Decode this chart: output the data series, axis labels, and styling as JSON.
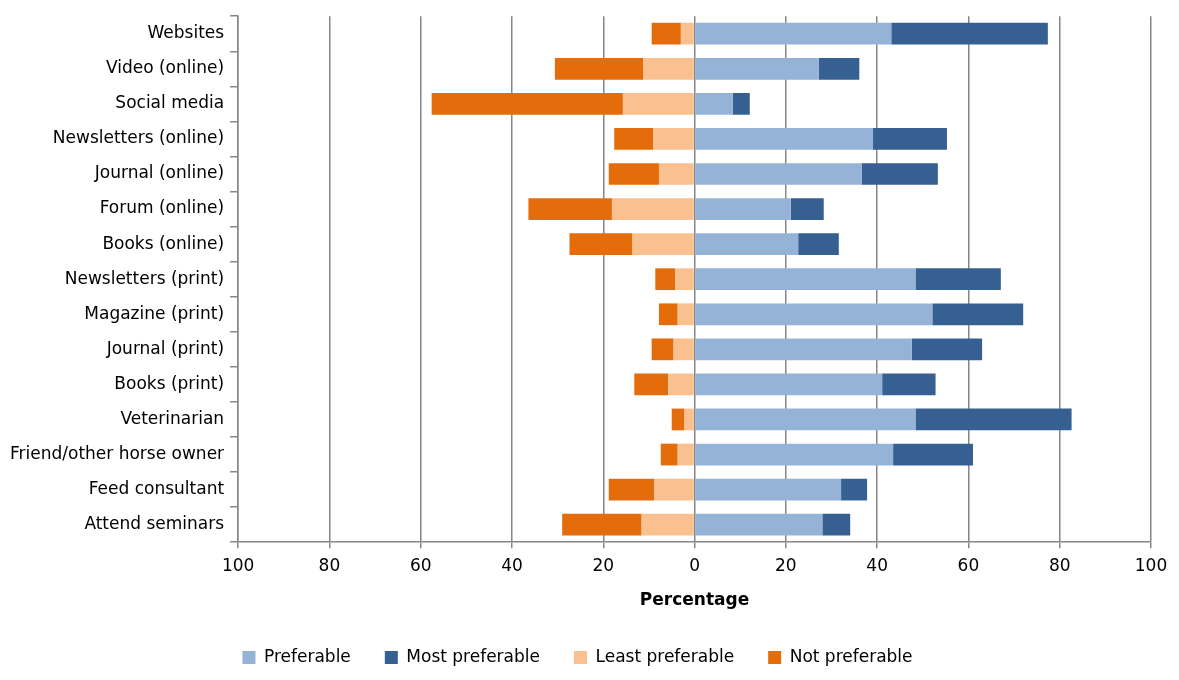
{
  "chart_data": {
    "type": "bar",
    "orientation": "horizontal",
    "stacked": true,
    "xlabel": "Percentage",
    "categories": [
      "Websites",
      "Video (online)",
      "Social media",
      "Newsletters (online)",
      "Journal (online)",
      "Forum (online)",
      "Books (online)",
      "Newsletters (print)",
      "Magazine (print)",
      "Journal (print)",
      "Books (print)",
      "Veterinarian",
      "Friend/other horse owner",
      "Feed consultant",
      "Attend seminars"
    ],
    "series": [
      {
        "name": "Preferable",
        "color": "#95b3d7",
        "values": [
          43.1,
          27.2,
          8.4,
          39.1,
          36.6,
          21.1,
          22.7,
          48.4,
          52.1,
          47.6,
          41.1,
          48.4,
          43.5,
          32.1,
          28
        ]
      },
      {
        "name": "Most preferable",
        "color": "#366092",
        "values": [
          34.3,
          8.9,
          3.7,
          16.2,
          16.7,
          7.2,
          8.9,
          18.7,
          19.9,
          15.4,
          11.7,
          34.2,
          17.5,
          5.7,
          6.1
        ]
      },
      {
        "name": "Least preferable",
        "color": "#fac090",
        "values": [
          -3,
          -11.2,
          -15.7,
          -9.1,
          -7.8,
          -18.1,
          -13.6,
          -4.2,
          -3.7,
          -4.6,
          -5.8,
          -2.2,
          -3.7,
          -8.8,
          -11.6
        ]
      },
      {
        "name": "Not preferable",
        "color": "#e46c0a",
        "values": [
          -6.4,
          -19.4,
          -41.9,
          -8.5,
          -11,
          -18.3,
          -13.8,
          -4.4,
          -4.1,
          -4.8,
          -7.4,
          -2.8,
          -3.7,
          -10,
          -17.4
        ]
      }
    ],
    "xlim": [
      -100,
      100
    ],
    "xticks": [
      {
        "value": -100,
        "label": "100"
      },
      {
        "value": -80,
        "label": "80"
      },
      {
        "value": -60,
        "label": "60"
      },
      {
        "value": -40,
        "label": "40"
      },
      {
        "value": -20,
        "label": "20"
      },
      0,
      20,
      40,
      60,
      80,
      100
    ],
    "grid": "x",
    "legend": "bottom"
  }
}
